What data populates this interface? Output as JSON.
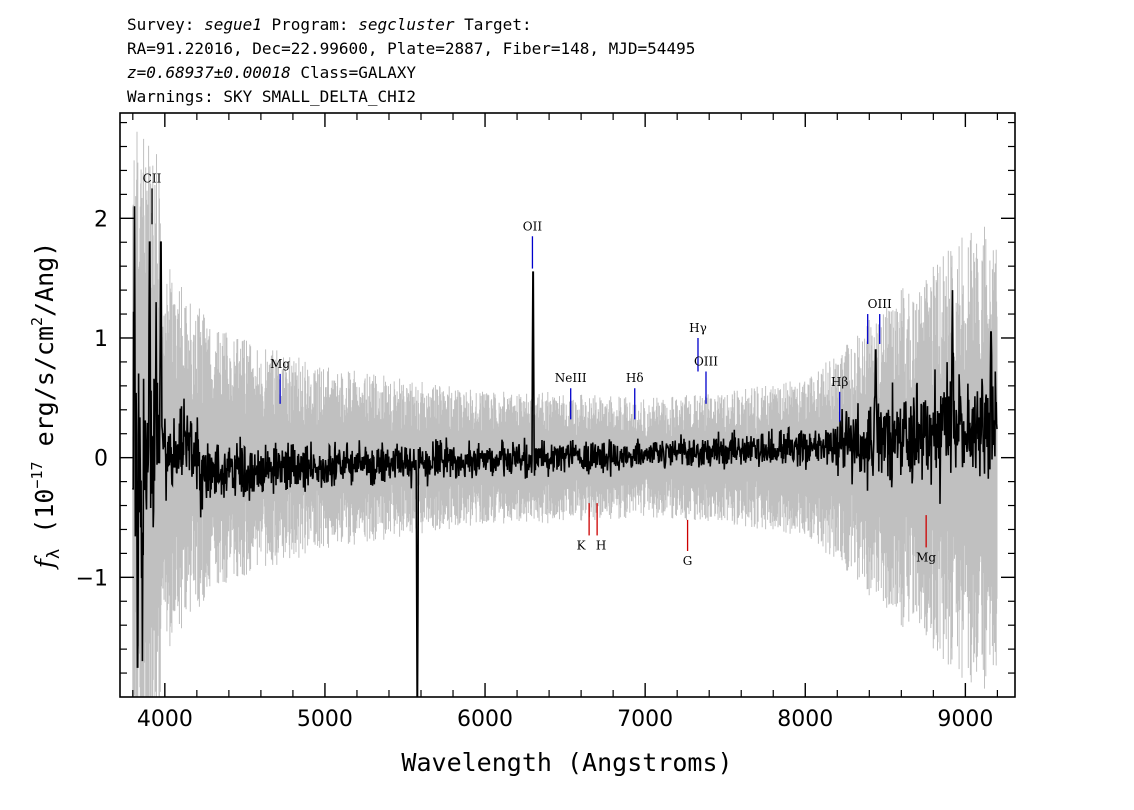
{
  "header": {
    "line1": {
      "survey_label": "Survey: ",
      "survey": "segue1",
      "program_label": " Program: ",
      "program": "segcluster",
      "target_label": " Target:"
    },
    "line2": "RA=91.22016, Dec=22.99600, Plate=2887, Fiber=148, MJD=54495",
    "line3": {
      "redshift": "z=0.68937±0.00018",
      "class": " Class=GALAXY"
    },
    "line4": "Warnings: SKY SMALL_DELTA_CHI2"
  },
  "chart_data": {
    "type": "line",
    "xlabel": "Wavelength (Angstroms)",
    "ylabel": {
      "symbol": "f",
      "subscript": "λ",
      "text_before_exp": " (10",
      "exponent": "−17",
      "text_units": " erg/s/cm",
      "exponent2": "2",
      "text_end": "/Ang)"
    },
    "xlim": [
      3720,
      9310
    ],
    "ylim": [
      -2.0,
      2.88
    ],
    "x_ticks": [
      4000,
      5000,
      6000,
      7000,
      8000,
      9000
    ],
    "x_tick_labels": [
      "4000",
      "5000",
      "6000",
      "7000",
      "8000",
      "9000"
    ],
    "y_ticks": [
      -1,
      0,
      1,
      2
    ],
    "y_tick_labels": [
      "−1",
      "0",
      "1",
      "2"
    ],
    "grid": false,
    "series": [
      {
        "role": "error",
        "color": "#c0c0c0",
        "x_range": [
          3800,
          9200
        ],
        "envelope": [
          [
            3800,
            2.5
          ],
          [
            3950,
            2.5
          ],
          [
            4000,
            1.5
          ],
          [
            4300,
            1.0
          ],
          [
            4500,
            0.9
          ],
          [
            5000,
            0.7
          ],
          [
            5500,
            0.6
          ],
          [
            6000,
            0.5
          ],
          [
            6500,
            0.5
          ],
          [
            7000,
            0.45
          ],
          [
            7500,
            0.5
          ],
          [
            8000,
            0.6
          ],
          [
            8300,
            0.9
          ],
          [
            8500,
            1.2
          ],
          [
            8800,
            1.5
          ],
          [
            9000,
            1.7
          ],
          [
            9200,
            1.8
          ]
        ]
      },
      {
        "role": "flux",
        "color": "#000000",
        "x_range": [
          3800,
          9200
        ],
        "features": [
          {
            "x": 3810,
            "y": 2.1
          },
          {
            "x": 3830,
            "y": -1.75
          },
          {
            "x": 3860,
            "y": -1.7
          },
          {
            "x": 3905,
            "y": 1.8
          },
          {
            "x": 3945,
            "y": 1.3
          },
          {
            "x": 3975,
            "y": 1.8
          },
          {
            "x": 6300,
            "y": 1.55
          },
          {
            "x": 5577,
            "y": -2.0
          },
          {
            "x": 8440,
            "y": 0.9
          },
          {
            "x": 8920,
            "y": 1.4
          },
          {
            "x": 9160,
            "y": 1.05
          }
        ]
      }
    ],
    "lines": [
      {
        "label": "CII",
        "x": 3920,
        "y1": 2.25,
        "y2": 1.95,
        "color": "#000000",
        "side": "above"
      },
      {
        "label": "Mg",
        "x": 4720,
        "y1": 0.7,
        "y2": 0.45,
        "color": "#0000cc",
        "side": "above"
      },
      {
        "label": "OII",
        "x": 6296,
        "y1": 1.85,
        "y2": 1.58,
        "color": "#0000cc",
        "side": "above"
      },
      {
        "label": "NeIII",
        "x": 6535,
        "y1": 0.58,
        "y2": 0.32,
        "color": "#0000cc",
        "side": "above"
      },
      {
        "label": "Hδ",
        "x": 6935,
        "y1": 0.58,
        "y2": 0.32,
        "color": "#0000cc",
        "side": "above"
      },
      {
        "label": "Hγ",
        "x": 7330,
        "y1": 1.0,
        "y2": 0.72,
        "color": "#0000cc",
        "side": "above"
      },
      {
        "label": "OIII",
        "x": 7380,
        "y1": 0.72,
        "y2": 0.45,
        "color": "#0000cc",
        "side": "above"
      },
      {
        "label": "Hβ",
        "x": 8215,
        "y1": 0.55,
        "y2": 0.3,
        "color": "#0000cc",
        "side": "above"
      },
      {
        "label": "OIII",
        "x": 8390,
        "y1": 1.2,
        "y2": 0.95,
        "color": "#0000cc",
        "side": "above",
        "hide_label": true
      },
      {
        "label": "OIII",
        "x": 8465,
        "y1": 1.2,
        "y2": 0.95,
        "color": "#0000cc",
        "side": "above"
      },
      {
        "label": "K",
        "x": 6650,
        "y1": -0.38,
        "y2": -0.65,
        "color": "#cc0000",
        "side": "below"
      },
      {
        "label": "H",
        "x": 6700,
        "y1": -0.38,
        "y2": -0.65,
        "color": "#cc0000",
        "side": "below"
      },
      {
        "label": "G",
        "x": 7265,
        "y1": -0.52,
        "y2": -0.78,
        "color": "#cc0000",
        "side": "below"
      },
      {
        "label": "Mg",
        "x": 8755,
        "y1": -0.48,
        "y2": -0.75,
        "color": "#cc0000",
        "side": "below"
      }
    ]
  }
}
